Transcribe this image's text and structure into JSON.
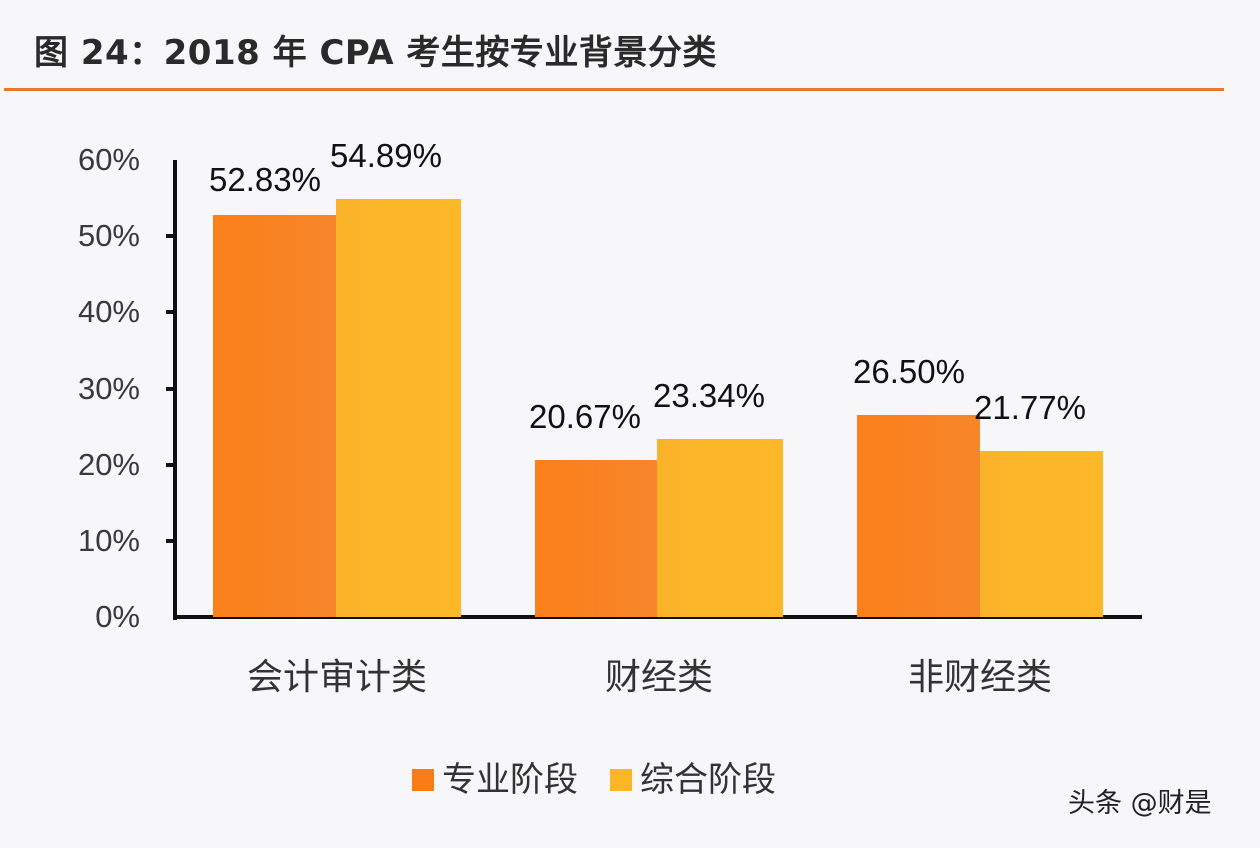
{
  "header": {
    "title": "图 24：2018 年 CPA 考生按专业背景分类"
  },
  "y_axis": {
    "ticks": [
      "60%",
      "50%",
      "40%",
      "30%",
      "20%",
      "10%",
      "0%"
    ]
  },
  "categories": [
    "会计审计类",
    "财经类",
    "非财经类"
  ],
  "legend": [
    {
      "label": "专业阶段",
      "color": "#f97c16"
    },
    {
      "label": "综合阶段",
      "color": "#fbb526"
    }
  ],
  "value_labels": {
    "s0": [
      "52.83%",
      "20.67%",
      "26.50%"
    ],
    "s1": [
      "54.89%",
      "23.34%",
      "21.77%"
    ]
  },
  "watermark": "头条 @财是",
  "chart_data": {
    "type": "bar",
    "title": "图 24：2018 年 CPA 考生按专业背景分类",
    "categories": [
      "会计审计类",
      "财经类",
      "非财经类"
    ],
    "series": [
      {
        "name": "专业阶段",
        "values": [
          52.83,
          20.67,
          26.5
        ],
        "color": "#f97c16"
      },
      {
        "name": "综合阶段",
        "values": [
          54.89,
          23.34,
          21.77
        ],
        "color": "#fbb526"
      }
    ],
    "xlabel": "",
    "ylabel": "",
    "ylim": [
      0,
      60
    ],
    "yticks": [
      "0%",
      "10%",
      "20%",
      "30%",
      "40%",
      "50%",
      "60%"
    ],
    "grid": false,
    "legend_position": "bottom",
    "data_labels": true
  }
}
